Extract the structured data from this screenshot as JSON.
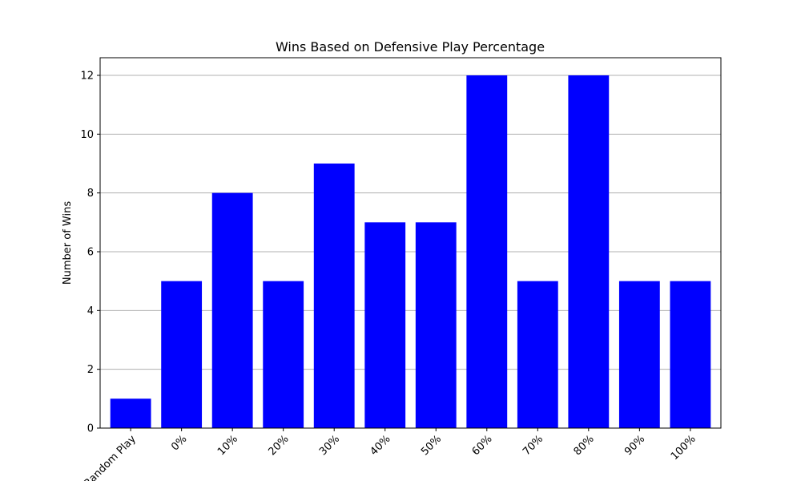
{
  "chart_data": {
    "type": "bar",
    "title": "Wins Based on Defensive Play Percentage",
    "xlabel": "",
    "ylabel": "Number of Wins",
    "categories": [
      "Random Play",
      "0%",
      "10%",
      "20%",
      "30%",
      "40%",
      "50%",
      "60%",
      "70%",
      "80%",
      "90%",
      "100%"
    ],
    "values": [
      1,
      5,
      8,
      5,
      9,
      7,
      7,
      12,
      5,
      12,
      5,
      5
    ],
    "ylim": [
      0,
      12.6
    ],
    "yticks": [
      0,
      2,
      4,
      6,
      8,
      10,
      12
    ],
    "grid": "horizontal",
    "bar_color": "#0000ff",
    "grid_color": "#b0b0b0"
  }
}
